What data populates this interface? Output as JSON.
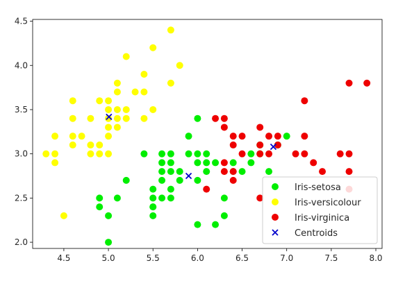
{
  "chart_data": {
    "type": "scatter",
    "title": "",
    "xlabel": "",
    "ylabel": "",
    "xlim": [
      4.15,
      8.07
    ],
    "ylim": [
      1.93,
      4.52
    ],
    "xticks": [
      4.5,
      5.0,
      5.5,
      6.0,
      6.5,
      7.0,
      7.5,
      8.0
    ],
    "xtick_labels": [
      "4.5",
      "5.0",
      "5.5",
      "6.0",
      "6.5",
      "7.0",
      "7.5",
      "8.0"
    ],
    "yticks": [
      2.0,
      2.5,
      3.0,
      3.5,
      4.0,
      4.5
    ],
    "ytick_labels": [
      "2.0",
      "2.5",
      "3.0",
      "3.5",
      "4.0",
      "4.5"
    ],
    "grid": false,
    "legend_position": "lower-right",
    "series": [
      {
        "name": "Iris-setosa",
        "marker": "circle",
        "color": "#00ee00",
        "points": [
          [
            4.9,
            2.5
          ],
          [
            4.9,
            2.4
          ],
          [
            5.0,
            2.3
          ],
          [
            5.0,
            2.0
          ],
          [
            5.1,
            2.5
          ],
          [
            5.2,
            2.7
          ],
          [
            5.4,
            3.0
          ],
          [
            5.5,
            2.6
          ],
          [
            5.5,
            2.5
          ],
          [
            5.5,
            2.4
          ],
          [
            5.5,
            2.3
          ],
          [
            5.5,
            2.4
          ],
          [
            5.6,
            3.0
          ],
          [
            5.6,
            2.9
          ],
          [
            5.6,
            2.8
          ],
          [
            5.6,
            2.7
          ],
          [
            5.6,
            2.5
          ],
          [
            5.7,
            3.0
          ],
          [
            5.7,
            2.9
          ],
          [
            5.7,
            2.8
          ],
          [
            5.7,
            2.6
          ],
          [
            5.7,
            2.5
          ],
          [
            5.8,
            2.8
          ],
          [
            5.8,
            2.7
          ],
          [
            5.9,
            3.2
          ],
          [
            5.9,
            3.0
          ],
          [
            6.0,
            3.4
          ],
          [
            6.0,
            3.0
          ],
          [
            6.0,
            2.9
          ],
          [
            6.0,
            2.7
          ],
          [
            6.0,
            2.2
          ],
          [
            6.1,
            3.0
          ],
          [
            6.1,
            2.9
          ],
          [
            6.1,
            2.8
          ],
          [
            6.2,
            2.9
          ],
          [
            6.2,
            2.2
          ],
          [
            6.3,
            2.5
          ],
          [
            6.3,
            2.3
          ],
          [
            6.4,
            2.9
          ],
          [
            6.4,
            2.8
          ],
          [
            6.5,
            2.8
          ],
          [
            6.6,
            3.0
          ],
          [
            6.6,
            2.9
          ],
          [
            6.7,
            3.1
          ],
          [
            6.7,
            3.0
          ],
          [
            6.8,
            2.8
          ],
          [
            6.9,
            3.1
          ],
          [
            7.0,
            3.2
          ]
        ]
      },
      {
        "name": "Iris-versicolour",
        "marker": "circle",
        "color": "#ffff00",
        "points": [
          [
            4.3,
            3.0
          ],
          [
            4.4,
            3.2
          ],
          [
            4.4,
            3.0
          ],
          [
            4.4,
            2.9
          ],
          [
            4.5,
            2.3
          ],
          [
            4.6,
            3.6
          ],
          [
            4.6,
            3.4
          ],
          [
            4.6,
            3.2
          ],
          [
            4.6,
            3.1
          ],
          [
            4.7,
            3.2
          ],
          [
            4.8,
            3.4
          ],
          [
            4.8,
            3.1
          ],
          [
            4.8,
            3.0
          ],
          [
            4.9,
            3.6
          ],
          [
            4.9,
            3.1
          ],
          [
            4.9,
            3.0
          ],
          [
            5.0,
            3.6
          ],
          [
            5.0,
            3.5
          ],
          [
            5.0,
            3.4
          ],
          [
            5.0,
            3.3
          ],
          [
            5.0,
            3.2
          ],
          [
            5.0,
            3.0
          ],
          [
            5.1,
            3.8
          ],
          [
            5.1,
            3.7
          ],
          [
            5.1,
            3.5
          ],
          [
            5.1,
            3.4
          ],
          [
            5.1,
            3.3
          ],
          [
            5.2,
            4.1
          ],
          [
            5.2,
            3.5
          ],
          [
            5.2,
            3.4
          ],
          [
            5.3,
            3.7
          ],
          [
            5.4,
            3.9
          ],
          [
            5.4,
            3.7
          ],
          [
            5.4,
            3.4
          ],
          [
            5.5,
            4.2
          ],
          [
            5.5,
            3.5
          ],
          [
            5.7,
            4.4
          ],
          [
            5.7,
            3.8
          ],
          [
            5.8,
            4.0
          ]
        ]
      },
      {
        "name": "Iris-virginica",
        "marker": "circle",
        "color": "#ee0000",
        "points": [
          [
            6.1,
            2.6
          ],
          [
            6.2,
            3.4
          ],
          [
            6.3,
            3.4
          ],
          [
            6.3,
            3.3
          ],
          [
            6.3,
            2.9
          ],
          [
            6.3,
            2.8
          ],
          [
            6.4,
            3.2
          ],
          [
            6.4,
            3.1
          ],
          [
            6.4,
            2.8
          ],
          [
            6.4,
            2.7
          ],
          [
            6.5,
            3.2
          ],
          [
            6.5,
            3.0
          ],
          [
            6.7,
            3.3
          ],
          [
            6.7,
            3.1
          ],
          [
            6.7,
            3.0
          ],
          [
            6.7,
            2.5
          ],
          [
            6.8,
            3.2
          ],
          [
            6.8,
            3.0
          ],
          [
            6.9,
            3.2
          ],
          [
            6.9,
            3.1
          ],
          [
            7.1,
            3.0
          ],
          [
            7.2,
            3.6
          ],
          [
            7.2,
            3.2
          ],
          [
            7.2,
            3.0
          ],
          [
            7.3,
            2.9
          ],
          [
            7.4,
            2.8
          ],
          [
            7.6,
            3.0
          ],
          [
            7.7,
            3.8
          ],
          [
            7.7,
            3.0
          ],
          [
            7.7,
            2.8
          ],
          [
            7.7,
            2.6
          ],
          [
            7.9,
            3.8
          ]
        ]
      },
      {
        "name": "Centroids",
        "marker": "x",
        "color": "#0000cc",
        "points": [
          [
            5.006,
            3.418
          ],
          [
            5.9,
            2.75
          ],
          [
            6.85,
            3.08
          ]
        ]
      }
    ]
  }
}
